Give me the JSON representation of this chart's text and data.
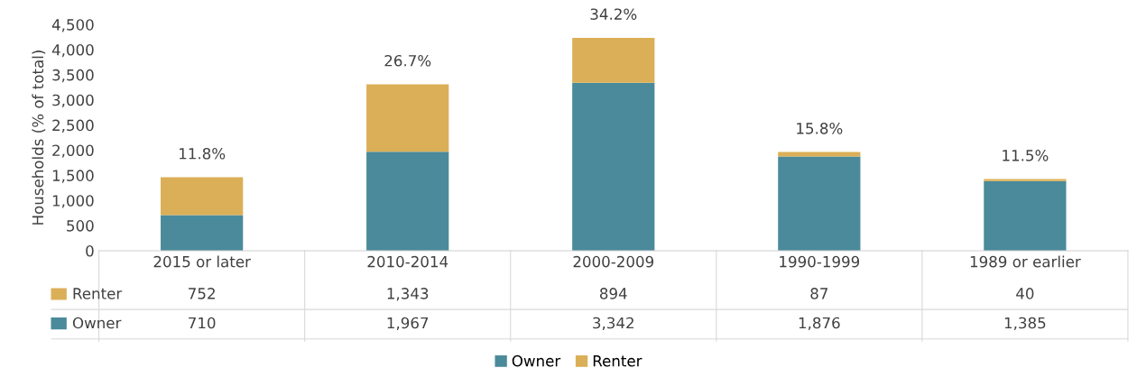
{
  "chart_data": {
    "type": "bar",
    "stacked": true,
    "ylabel": "Households (% of total)",
    "categories": [
      "2015 or later",
      "2010-2014",
      "2000-2009",
      "1990-1999",
      "1989 or earlier"
    ],
    "series": [
      {
        "name": "Owner",
        "color": "#4a8a9a",
        "values": [
          710,
          1967,
          3342,
          1876,
          1385
        ],
        "value_labels": [
          "710",
          "1,967",
          "3,342",
          "1,876",
          "1,385"
        ]
      },
      {
        "name": "Renter",
        "color": "#dbaf57",
        "values": [
          752,
          1343,
          894,
          87,
          40
        ],
        "value_labels": [
          "752",
          "1,343",
          "894",
          "87",
          "40"
        ]
      }
    ],
    "ylim": [
      0,
      4500
    ],
    "yticks": [
      0,
      500,
      {
        "value": 1000,
        "label": "1,000"
      },
      {
        "value": 1500,
        "label": "1,500"
      },
      {
        "value": 2000,
        "label": "2,000"
      },
      {
        "value": 2500,
        "label": "2,500"
      },
      {
        "value": 3000,
        "label": "3,000"
      },
      {
        "value": 3500,
        "label": "3,500"
      },
      {
        "value": 4000,
        "label": "4,000"
      },
      {
        "value": 4500,
        "label": "4,500"
      }
    ],
    "grid": false,
    "legend": "bottom",
    "annotations": [
      {
        "text": "11.8%",
        "x": "2015 or later",
        "y": 1462
      },
      {
        "text": "26.7%",
        "x": "2010-2014",
        "y": 3310
      },
      {
        "text": "34.2%",
        "x": "2000-2009",
        "y": 4236
      },
      {
        "text": "15.8%",
        "x": "1990-1999",
        "y": 1963
      },
      {
        "text": "11.5%",
        "x": "1989 or earlier",
        "y": 1425
      }
    ]
  }
}
